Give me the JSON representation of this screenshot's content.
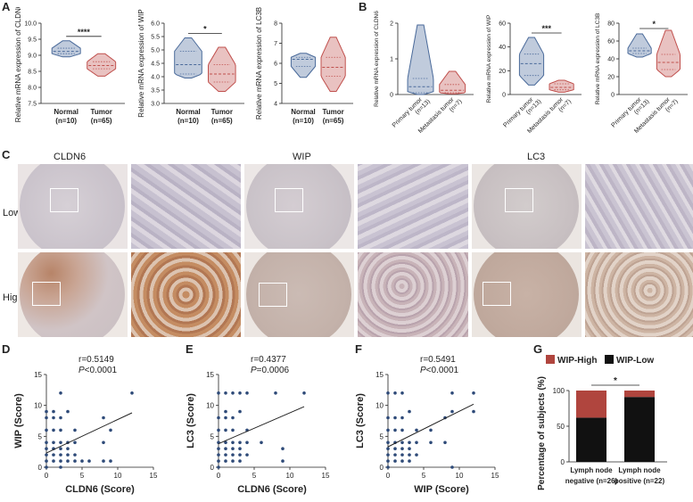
{
  "panel_letters": {
    "a": "A",
    "b": "B",
    "c": "C",
    "d": "D",
    "e": "E",
    "f": "F",
    "g": "G"
  },
  "panel_c": {
    "col_labels": [
      "CLDN6",
      "WIP",
      "LC3"
    ],
    "row_labels": [
      "Low",
      "High"
    ]
  },
  "colors": {
    "normal_violin": "#4a6a9a",
    "tumor_violin": "#c0504d",
    "dot": "#2e4a78",
    "wip_high": "#b0453e",
    "wip_low": "#111111"
  },
  "chart_data": [
    {
      "id": "A1",
      "type": "violin",
      "ylabel": "Relative mRNA expression of CLDN6",
      "ylim": [
        7.5,
        10.0
      ],
      "yticks": [
        "7.5",
        "8.0",
        "8.5",
        "9.0",
        "9.5",
        "10.0"
      ],
      "categories": [
        "Normal\n(n=10)",
        "Tumor\n(n=65)"
      ],
      "cat_l1": [
        "Normal",
        "Tumor"
      ],
      "cat_l2": [
        "(n=10)",
        "(n=65)"
      ],
      "groups": [
        {
          "min": 8.95,
          "max": 9.45,
          "median": 9.12,
          "q1": 9.05,
          "q3": 9.22
        },
        {
          "min": 8.35,
          "max": 9.05,
          "median": 8.68,
          "q1": 8.58,
          "q3": 8.8
        }
      ],
      "significance": "****"
    },
    {
      "id": "A2",
      "type": "violin",
      "ylabel": "Relative mRNA expression of WIP",
      "ylim": [
        3.0,
        6.0
      ],
      "yticks": [
        "3.0",
        "3.5",
        "4.0",
        "4.5",
        "5.0",
        "5.5",
        "6.0"
      ],
      "cat_l1": [
        "Normal",
        "Tumor"
      ],
      "cat_l2": [
        "(n=10)",
        "(n=65)"
      ],
      "groups": [
        {
          "min": 3.95,
          "max": 5.45,
          "median": 4.45,
          "q1": 4.1,
          "q3": 4.95
        },
        {
          "min": 3.45,
          "max": 5.1,
          "median": 4.1,
          "q1": 3.8,
          "q3": 4.45
        }
      ],
      "significance": "*"
    },
    {
      "id": "A3",
      "type": "violin",
      "ylabel": "Relative mRNA expression of LC3B",
      "ylim": [
        4,
        8
      ],
      "yticks": [
        "4",
        "5",
        "6",
        "7",
        "8"
      ],
      "cat_l1": [
        "Normal",
        "Tumor"
      ],
      "cat_l2": [
        "(n=10)",
        "(n=65)"
      ],
      "groups": [
        {
          "min": 5.3,
          "max": 6.5,
          "median": 6.2,
          "q1": 5.85,
          "q3": 6.3
        },
        {
          "min": 4.6,
          "max": 7.3,
          "median": 5.8,
          "q1": 5.35,
          "q3": 6.3
        }
      ],
      "significance": ""
    },
    {
      "id": "B1",
      "type": "violin",
      "ylabel": "Relative mRNA expression of CLDN6",
      "ylim": [
        0,
        2
      ],
      "yticks": [
        "0",
        "1",
        "2"
      ],
      "cat_l1": [
        "Primary tumor",
        "Metastasis tumor"
      ],
      "cat_l2": [
        "(n=13)",
        "(n=7)"
      ],
      "groups": [
        {
          "min": 0.0,
          "max": 1.95,
          "median": 0.22,
          "q1": 0.05,
          "q3": 0.45
        },
        {
          "min": 0.02,
          "max": 0.65,
          "median": 0.12,
          "q1": 0.05,
          "q3": 0.28
        }
      ],
      "significance": ""
    },
    {
      "id": "B2",
      "type": "violin",
      "ylabel": "Relative mRNA expression of WIP",
      "ylim": [
        0,
        60
      ],
      "yticks": [
        "0",
        "20",
        "40",
        "60"
      ],
      "cat_l1": [
        "Primary tumor",
        "Metastasis tumor"
      ],
      "cat_l2": [
        "(n=13)",
        "(n=7)"
      ],
      "groups": [
        {
          "min": 8,
          "max": 48,
          "median": 26,
          "q1": 16,
          "q3": 34
        },
        {
          "min": 2,
          "max": 12,
          "median": 6,
          "q1": 4,
          "q3": 9
        }
      ],
      "significance": "***"
    },
    {
      "id": "B3",
      "type": "violin",
      "ylabel": "Relative mRNA expression of LC3B",
      "ylim": [
        0,
        80
      ],
      "yticks": [
        "0",
        "20",
        "40",
        "60",
        "80"
      ],
      "cat_l1": [
        "Primary tumor",
        "Metastasis tumor"
      ],
      "cat_l2": [
        "(n=13)",
        "(n=7)"
      ],
      "groups": [
        {
          "min": 42,
          "max": 68,
          "median": 49,
          "q1": 46,
          "q3": 52
        },
        {
          "min": 20,
          "max": 72,
          "median": 36,
          "q1": 28,
          "q3": 45
        }
      ],
      "significance": "*"
    },
    {
      "id": "D",
      "type": "scatter",
      "xlabel": "CLDN6 (Score)",
      "ylabel": "WIP (Score)",
      "r_text": "r=0.5149",
      "p_prefix": "P",
      "p_text": "<0.0001",
      "xlim": [
        0,
        15
      ],
      "ylim": [
        0,
        15
      ],
      "xticks": [
        "0",
        "5",
        "10",
        "15"
      ],
      "yticks": [
        "0",
        "5",
        "10",
        "15"
      ],
      "points": [
        [
          0,
          0
        ],
        [
          0,
          1
        ],
        [
          0,
          2
        ],
        [
          0,
          3
        ],
        [
          0,
          4
        ],
        [
          0,
          6
        ],
        [
          0,
          8
        ],
        [
          0,
          9
        ],
        [
          1,
          1
        ],
        [
          1,
          2
        ],
        [
          1,
          3
        ],
        [
          1,
          4
        ],
        [
          1,
          6
        ],
        [
          1,
          8
        ],
        [
          1,
          9
        ],
        [
          2,
          0
        ],
        [
          2,
          1
        ],
        [
          2,
          2
        ],
        [
          2,
          3
        ],
        [
          2,
          4
        ],
        [
          2,
          6
        ],
        [
          2,
          8
        ],
        [
          2,
          12
        ],
        [
          3,
          1
        ],
        [
          3,
          2
        ],
        [
          3,
          3
        ],
        [
          3,
          4
        ],
        [
          3,
          9
        ],
        [
          4,
          1
        ],
        [
          4,
          2
        ],
        [
          4,
          4
        ],
        [
          4,
          6
        ],
        [
          5,
          1
        ],
        [
          6,
          1
        ],
        [
          8,
          1
        ],
        [
          8,
          4
        ],
        [
          8,
          8
        ],
        [
          9,
          6
        ],
        [
          9,
          1
        ],
        [
          12,
          12
        ]
      ],
      "line": [
        [
          0,
          2.3
        ],
        [
          12,
          8.8
        ]
      ]
    },
    {
      "id": "E",
      "type": "scatter",
      "xlabel": "CLDN6 (Score)",
      "ylabel": "LC3 (Score)",
      "r_text": "r=0.4377",
      "p_prefix": "P",
      "p_text": "=0.0006",
      "xlim": [
        0,
        15
      ],
      "ylim": [
        0,
        15
      ],
      "xticks": [
        "0",
        "5",
        "10",
        "15"
      ],
      "yticks": [
        "0",
        "5",
        "10",
        "15"
      ],
      "points": [
        [
          0,
          0
        ],
        [
          0,
          1
        ],
        [
          0,
          2
        ],
        [
          0,
          3
        ],
        [
          0,
          4
        ],
        [
          0,
          6
        ],
        [
          0,
          8
        ],
        [
          0,
          12
        ],
        [
          1,
          1
        ],
        [
          1,
          2
        ],
        [
          1,
          3
        ],
        [
          1,
          4
        ],
        [
          1,
          6
        ],
        [
          1,
          8
        ],
        [
          1,
          9
        ],
        [
          1,
          12
        ],
        [
          2,
          1
        ],
        [
          2,
          2
        ],
        [
          2,
          3
        ],
        [
          2,
          4
        ],
        [
          2,
          6
        ],
        [
          2,
          8
        ],
        [
          2,
          12
        ],
        [
          3,
          1
        ],
        [
          3,
          2
        ],
        [
          3,
          3
        ],
        [
          3,
          4
        ],
        [
          3,
          9
        ],
        [
          3,
          12
        ],
        [
          4,
          2
        ],
        [
          4,
          4
        ],
        [
          4,
          6
        ],
        [
          4,
          12
        ],
        [
          6,
          4
        ],
        [
          8,
          12
        ],
        [
          9,
          3
        ],
        [
          9,
          1
        ],
        [
          12,
          12
        ]
      ],
      "line": [
        [
          0,
          3.8
        ],
        [
          12,
          9.8
        ]
      ]
    },
    {
      "id": "F",
      "type": "scatter",
      "xlabel": "WIP (Score)",
      "ylabel": "LC3 (Score)",
      "r_text": "r=0.5491",
      "p_prefix": "P",
      "p_text": "<0.0001",
      "xlim": [
        0,
        15
      ],
      "ylim": [
        0,
        15
      ],
      "xticks": [
        "0",
        "5",
        "10",
        "15"
      ],
      "yticks": [
        "0",
        "5",
        "10",
        "15"
      ],
      "points": [
        [
          0,
          0
        ],
        [
          0,
          1
        ],
        [
          0,
          2
        ],
        [
          0,
          3
        ],
        [
          0,
          4
        ],
        [
          0,
          6
        ],
        [
          0,
          8
        ],
        [
          0,
          12
        ],
        [
          1,
          1
        ],
        [
          1,
          2
        ],
        [
          1,
          3
        ],
        [
          1,
          4
        ],
        [
          1,
          6
        ],
        [
          1,
          8
        ],
        [
          1,
          12
        ],
        [
          2,
          1
        ],
        [
          2,
          2
        ],
        [
          2,
          3
        ],
        [
          2,
          4
        ],
        [
          2,
          6
        ],
        [
          2,
          8
        ],
        [
          2,
          12
        ],
        [
          3,
          1
        ],
        [
          3,
          2
        ],
        [
          3,
          3
        ],
        [
          3,
          4
        ],
        [
          3,
          9
        ],
        [
          4,
          2
        ],
        [
          4,
          4
        ],
        [
          4,
          6
        ],
        [
          6,
          4
        ],
        [
          6,
          6
        ],
        [
          8,
          8
        ],
        [
          8,
          4
        ],
        [
          9,
          9
        ],
        [
          9,
          0
        ],
        [
          9,
          12
        ],
        [
          12,
          9
        ],
        [
          12,
          12
        ]
      ],
      "line": [
        [
          0,
          3.3
        ],
        [
          12,
          10.2
        ]
      ]
    },
    {
      "id": "G",
      "type": "bar",
      "ylabel": "Percentage of subjects (%)",
      "ylim": [
        0,
        100
      ],
      "yticks": [
        "0",
        "50",
        "100"
      ],
      "cat_l1": [
        "Lymph node",
        "Lymph node"
      ],
      "cat_l2": [
        "negative (n=26)",
        "positive (n=22)"
      ],
      "series": [
        {
          "name": "WIP-High",
          "values": [
            38,
            9
          ]
        },
        {
          "name": "WIP-Low",
          "values": [
            62,
            91
          ]
        }
      ],
      "significance": "*"
    }
  ]
}
